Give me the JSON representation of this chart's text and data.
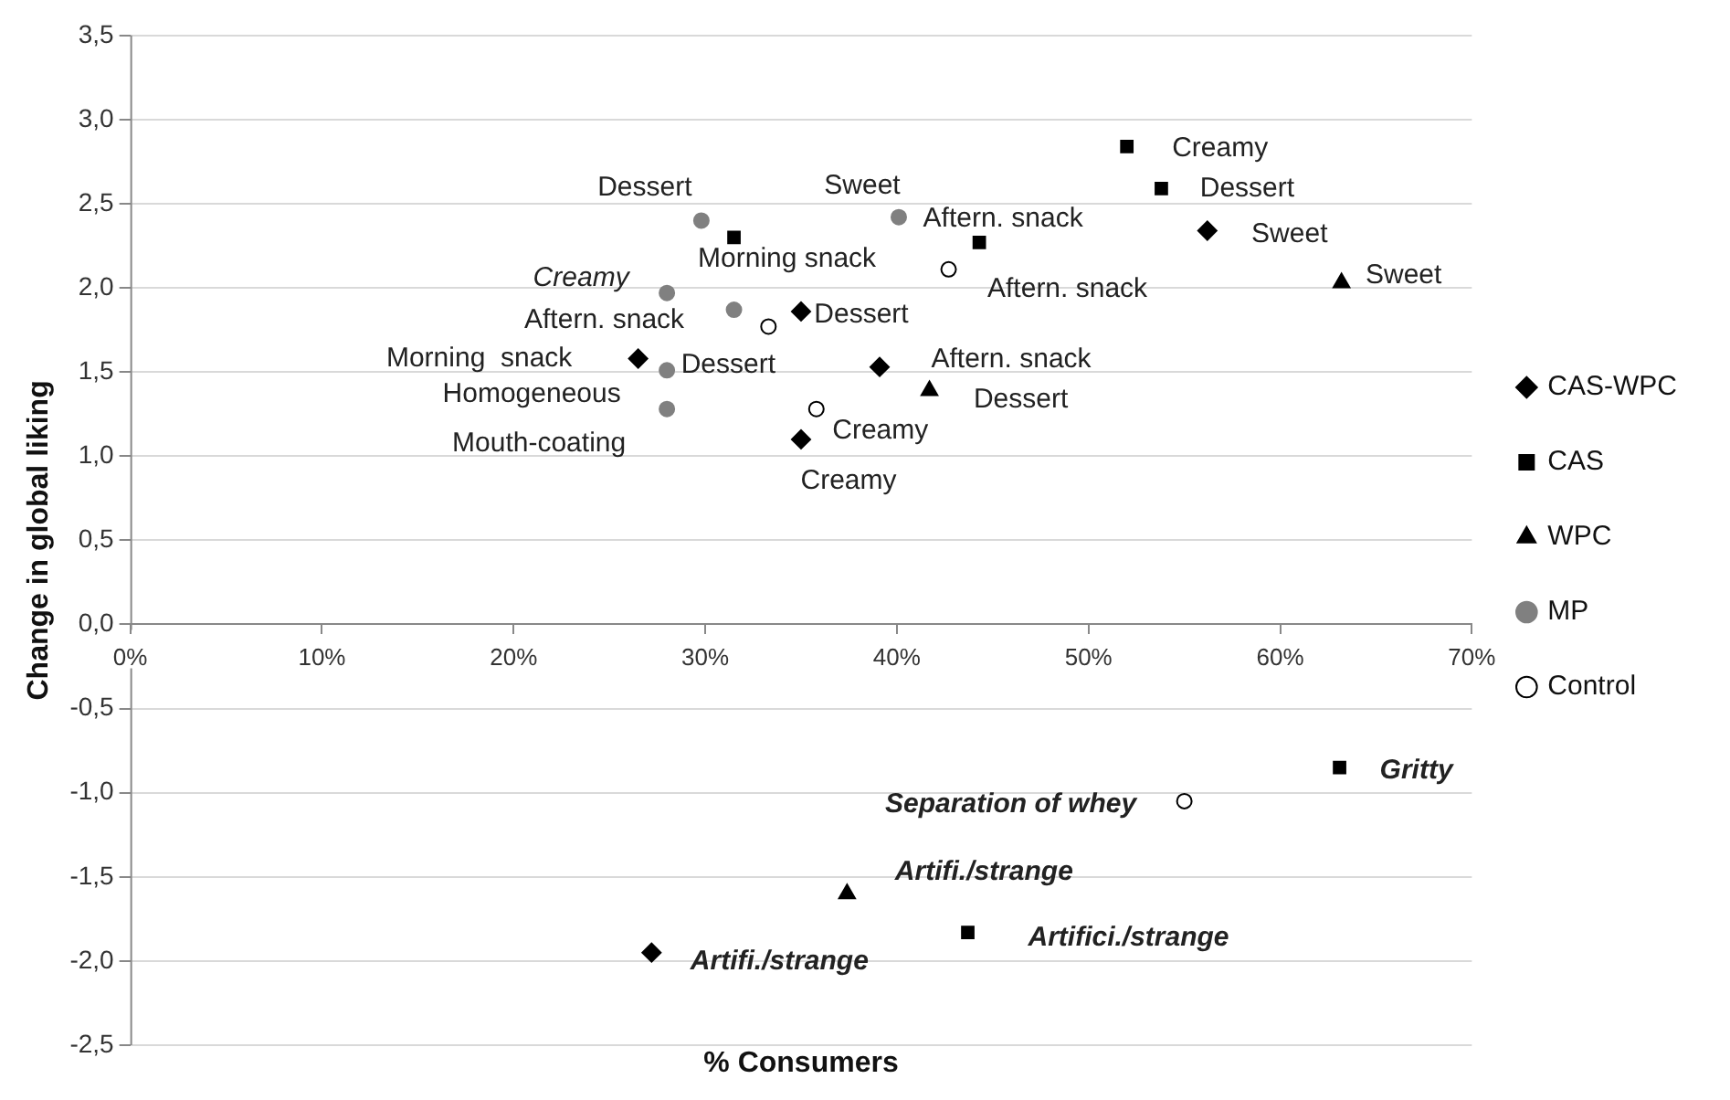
{
  "chart_data": {
    "type": "scatter",
    "xlabel": "% Consumers",
    "ylabel": "Change in global liking",
    "xlim": [
      0,
      70
    ],
    "xticks": [
      {
        "value": 0,
        "label": "0%"
      },
      {
        "value": 10,
        "label": "10%"
      },
      {
        "value": 20,
        "label": "20%"
      },
      {
        "value": 30,
        "label": "30%"
      },
      {
        "value": 40,
        "label": "40%"
      },
      {
        "value": 50,
        "label": "50%"
      },
      {
        "value": 60,
        "label": "60%"
      },
      {
        "value": 70,
        "label": "70%"
      }
    ],
    "ylim": [
      -2.5,
      3.5
    ],
    "yticks": [
      {
        "value": -2.5,
        "label": "-2,5"
      },
      {
        "value": -2,
        "label": "-2,0"
      },
      {
        "value": -1.5,
        "label": "-1,5"
      },
      {
        "value": -1,
        "label": "-1,0"
      },
      {
        "value": -0.5,
        "label": "-0,5"
      },
      {
        "value": 0,
        "label": "0,0"
      },
      {
        "value": 0.5,
        "label": "0,5"
      },
      {
        "value": 1,
        "label": "1,0"
      },
      {
        "value": 1.5,
        "label": "1,5"
      },
      {
        "value": 2,
        "label": "2,0"
      },
      {
        "value": 2.5,
        "label": "2,5"
      },
      {
        "value": 3,
        "label": "3,0"
      },
      {
        "value": 3.5,
        "label": "3,5"
      }
    ],
    "grid": "y",
    "legend": "right",
    "series": [
      {
        "name": "CAS-WPC",
        "color": "#000000",
        "marker": "diamond",
        "x": [
          26.5,
          35.0,
          39.1,
          35.0,
          56.2,
          27.2
        ],
        "values": [
          1.58,
          1.86,
          1.53,
          1.1,
          2.34,
          -1.95
        ]
      },
      {
        "name": "CAS",
        "color": "#000000",
        "marker": "square",
        "x": [
          52.0,
          53.8,
          44.3,
          31.5,
          63.1,
          43.7
        ],
        "values": [
          2.84,
          2.59,
          2.27,
          2.3,
          -0.85,
          -1.83
        ]
      },
      {
        "name": "WPC",
        "color": "#000000",
        "marker": "triangle",
        "x": [
          63.2,
          41.7,
          37.4
        ],
        "values": [
          2.03,
          1.39,
          -1.6
        ]
      },
      {
        "name": "MP",
        "color": "#808080",
        "marker": "circle",
        "x": [
          29.8,
          40.1,
          28.0,
          31.5,
          28.0,
          28.0
        ],
        "values": [
          2.4,
          2.42,
          1.97,
          1.87,
          1.51,
          1.28
        ]
      },
      {
        "name": "Control",
        "color": "#ffffff",
        "marker": "circle",
        "x": [
          33.3,
          35.8,
          42.7,
          55.0
        ],
        "values": [
          1.77,
          1.28,
          2.11,
          -1.05
        ]
      }
    ],
    "annotations": [
      {
        "text": "Dessert",
        "x": 29.8,
        "y": 2.4
      },
      {
        "text": "Sweet",
        "x": 40.1,
        "y": 2.42
      },
      {
        "text": "Morning snack",
        "x": 31.5,
        "y": 2.3
      },
      {
        "text": "Creamy",
        "x": 28.0,
        "y": 1.97
      },
      {
        "text": "Aftern. snack",
        "x": 31.5,
        "y": 1.87
      },
      {
        "text": "Dessert",
        "x": 33.3,
        "y": 1.77
      },
      {
        "text": "Dessert",
        "x": 35.0,
        "y": 1.86
      },
      {
        "text": "Morning  snack",
        "x": 26.5,
        "y": 1.58
      },
      {
        "text": "Homogeneous",
        "x": 28.0,
        "y": 1.51
      },
      {
        "text": "Mouth-coating",
        "x": 28.0,
        "y": 1.28
      },
      {
        "text": "Aftern. snack",
        "x": 39.1,
        "y": 1.53
      },
      {
        "text": "Dessert",
        "x": 41.7,
        "y": 1.39
      },
      {
        "text": "Creamy",
        "x": 35.8,
        "y": 1.28
      },
      {
        "text": "Creamy",
        "x": 35.0,
        "y": 1.1
      },
      {
        "text": "Aftern. snack",
        "x": 42.7,
        "y": 2.11
      },
      {
        "text": "Aftern. snack",
        "x": 44.3,
        "y": 2.27
      },
      {
        "text": "Creamy",
        "x": 52.0,
        "y": 2.84
      },
      {
        "text": "Dessert",
        "x": 53.8,
        "y": 2.59
      },
      {
        "text": "Sweet",
        "x": 56.2,
        "y": 2.34
      },
      {
        "text": "Sweet",
        "x": 63.2,
        "y": 2.03
      },
      {
        "text": "Gritty",
        "x": 63.1,
        "y": -0.85
      },
      {
        "text": "Separation of whey",
        "x": 55.0,
        "y": -1.05
      },
      {
        "text": "Artifi./strange",
        "x": 37.4,
        "y": -1.6
      },
      {
        "text": "Artifici./strange",
        "x": 43.7,
        "y": -1.83
      },
      {
        "text": "Artifi./strange",
        "x": 27.2,
        "y": -1.95
      }
    ]
  }
}
